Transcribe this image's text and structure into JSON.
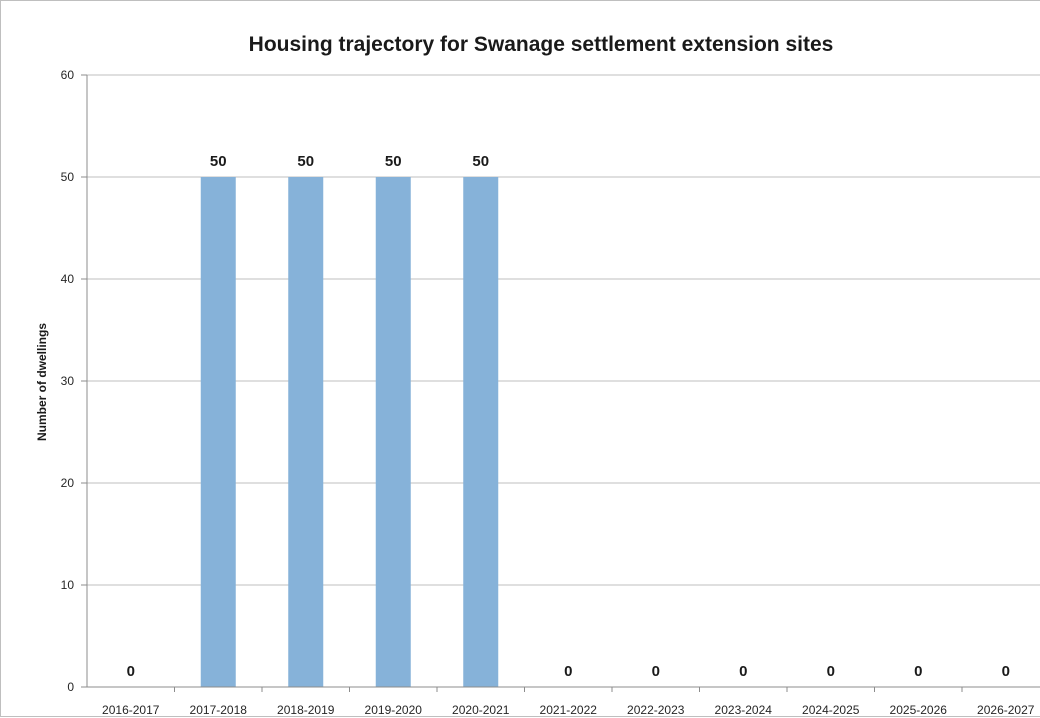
{
  "chart_data": {
    "type": "bar",
    "title": "Housing trajectory for Swanage settlement extension sites",
    "xlabel": "",
    "ylabel": "Number of dwellings",
    "ylim": [
      0,
      60
    ],
    "yticks": [
      0,
      10,
      20,
      30,
      40,
      50,
      60
    ],
    "grid": true,
    "legend": "none",
    "bar_color": "#86b2d9",
    "categories": [
      "2016-2017",
      "2017-2018",
      "2018-2019",
      "2019-2020",
      "2020-2021",
      "2021-2022",
      "2022-2023",
      "2023-2024",
      "2024-2025",
      "2025-2026",
      "2026-2027"
    ],
    "values": [
      0,
      50,
      50,
      50,
      50,
      0,
      0,
      0,
      0,
      0,
      0
    ],
    "data_labels": [
      "0",
      "50",
      "50",
      "50",
      "50",
      "0",
      "0",
      "0",
      "0",
      "0",
      "0"
    ]
  }
}
